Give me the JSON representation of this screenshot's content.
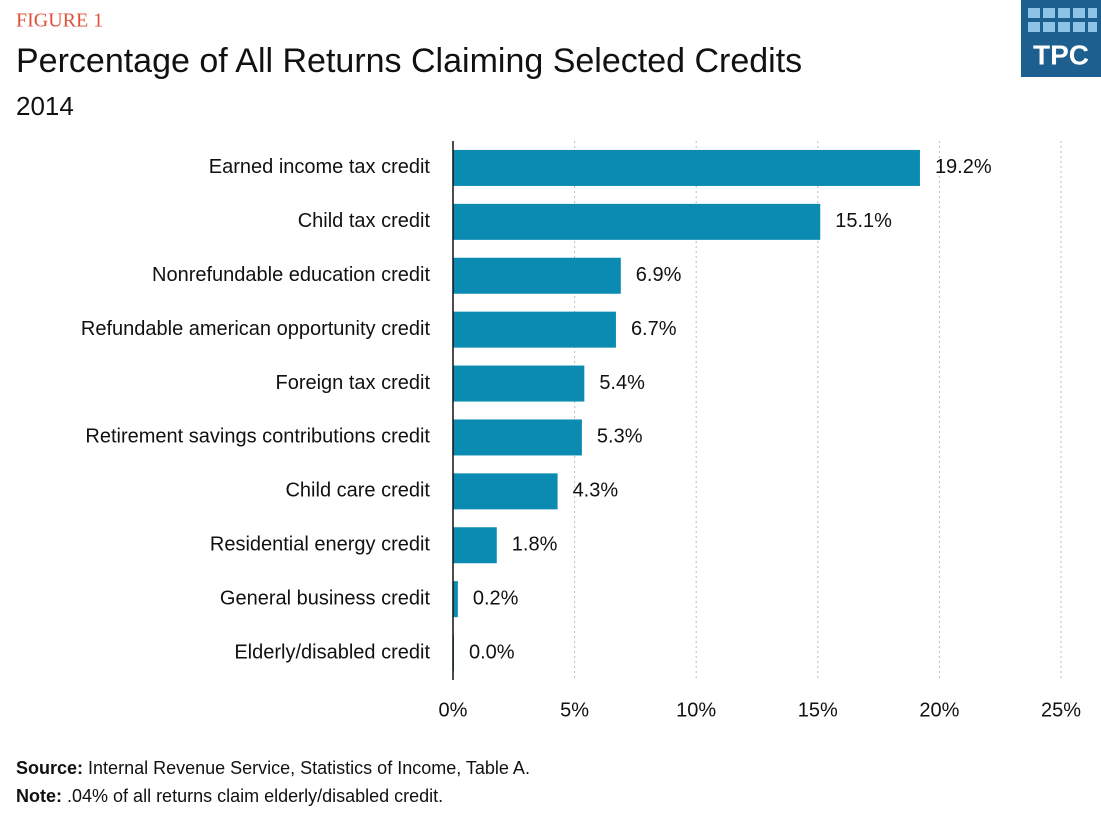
{
  "figure_label": "FIGURE 1",
  "logo_text": "TPC",
  "chart_data": {
    "type": "bar",
    "orientation": "horizontal",
    "title": "Percentage of All Returns Claiming Selected Credits",
    "subtitle": "2014",
    "categories": [
      "Earned income tax credit",
      "Child tax credit",
      "Nonrefundable education credit",
      "Refundable american opportunity credit",
      "Foreign tax credit",
      "Retirement savings contributions credit",
      "Child care credit",
      "Residential energy credit",
      "General business credit",
      "Elderly/disabled credit"
    ],
    "values": [
      19.2,
      15.1,
      6.9,
      6.7,
      5.4,
      5.3,
      4.3,
      1.8,
      0.2,
      0.04
    ],
    "value_labels": [
      "19.2%",
      "15.1%",
      "6.9%",
      "6.7%",
      "5.4%",
      "5.3%",
      "4.3%",
      "1.8%",
      "0.2%",
      "0.0%"
    ],
    "color": "#0b8bb2",
    "xlim": [
      0,
      25
    ],
    "xticks": [
      {
        "value": 0,
        "label": "0%"
      },
      {
        "value": 5,
        "label": "5%"
      },
      {
        "value": 10,
        "label": "10%"
      },
      {
        "value": 15,
        "label": "15%"
      },
      {
        "value": 20,
        "label": "20%"
      },
      {
        "value": 25,
        "label": "25%"
      }
    ],
    "grid": true
  },
  "source": {
    "label": "Source:",
    "text": "Internal Revenue Service, Statistics of Income, Table A."
  },
  "note": {
    "label": "Note:",
    "text": ".04% of all returns claim elderly/disabled credit."
  }
}
